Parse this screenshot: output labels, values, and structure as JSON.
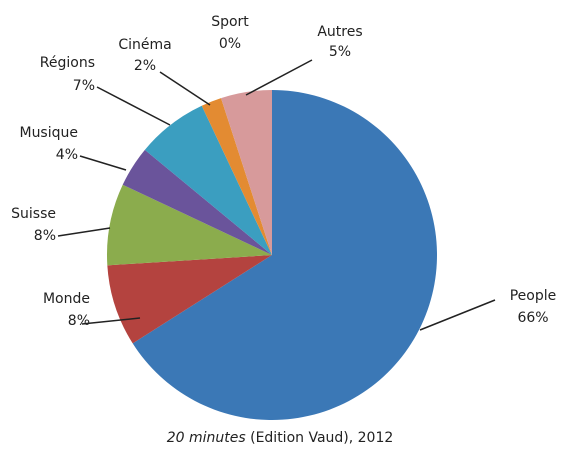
{
  "chart_data": {
    "type": "pie",
    "categories": [
      "People",
      "Monde",
      "Suisse",
      "Musique",
      "Régions",
      "Cinéma",
      "Sport",
      "Autres"
    ],
    "values": [
      66,
      8,
      8,
      4,
      7,
      2,
      0,
      5
    ],
    "value_labels": [
      "66%",
      "8%",
      "8%",
      "4%",
      "7%",
      "2%",
      "0%",
      "5%"
    ],
    "colors": [
      "#3b78b6",
      "#b4433f",
      "#8bac4d",
      "#6a549b",
      "#3b9ec0",
      "#e38b32",
      "#e0a060",
      "#d79a9b"
    ],
    "source_title": "20 minutes",
    "source_rest": "(Edition Vaud), 2012"
  }
}
